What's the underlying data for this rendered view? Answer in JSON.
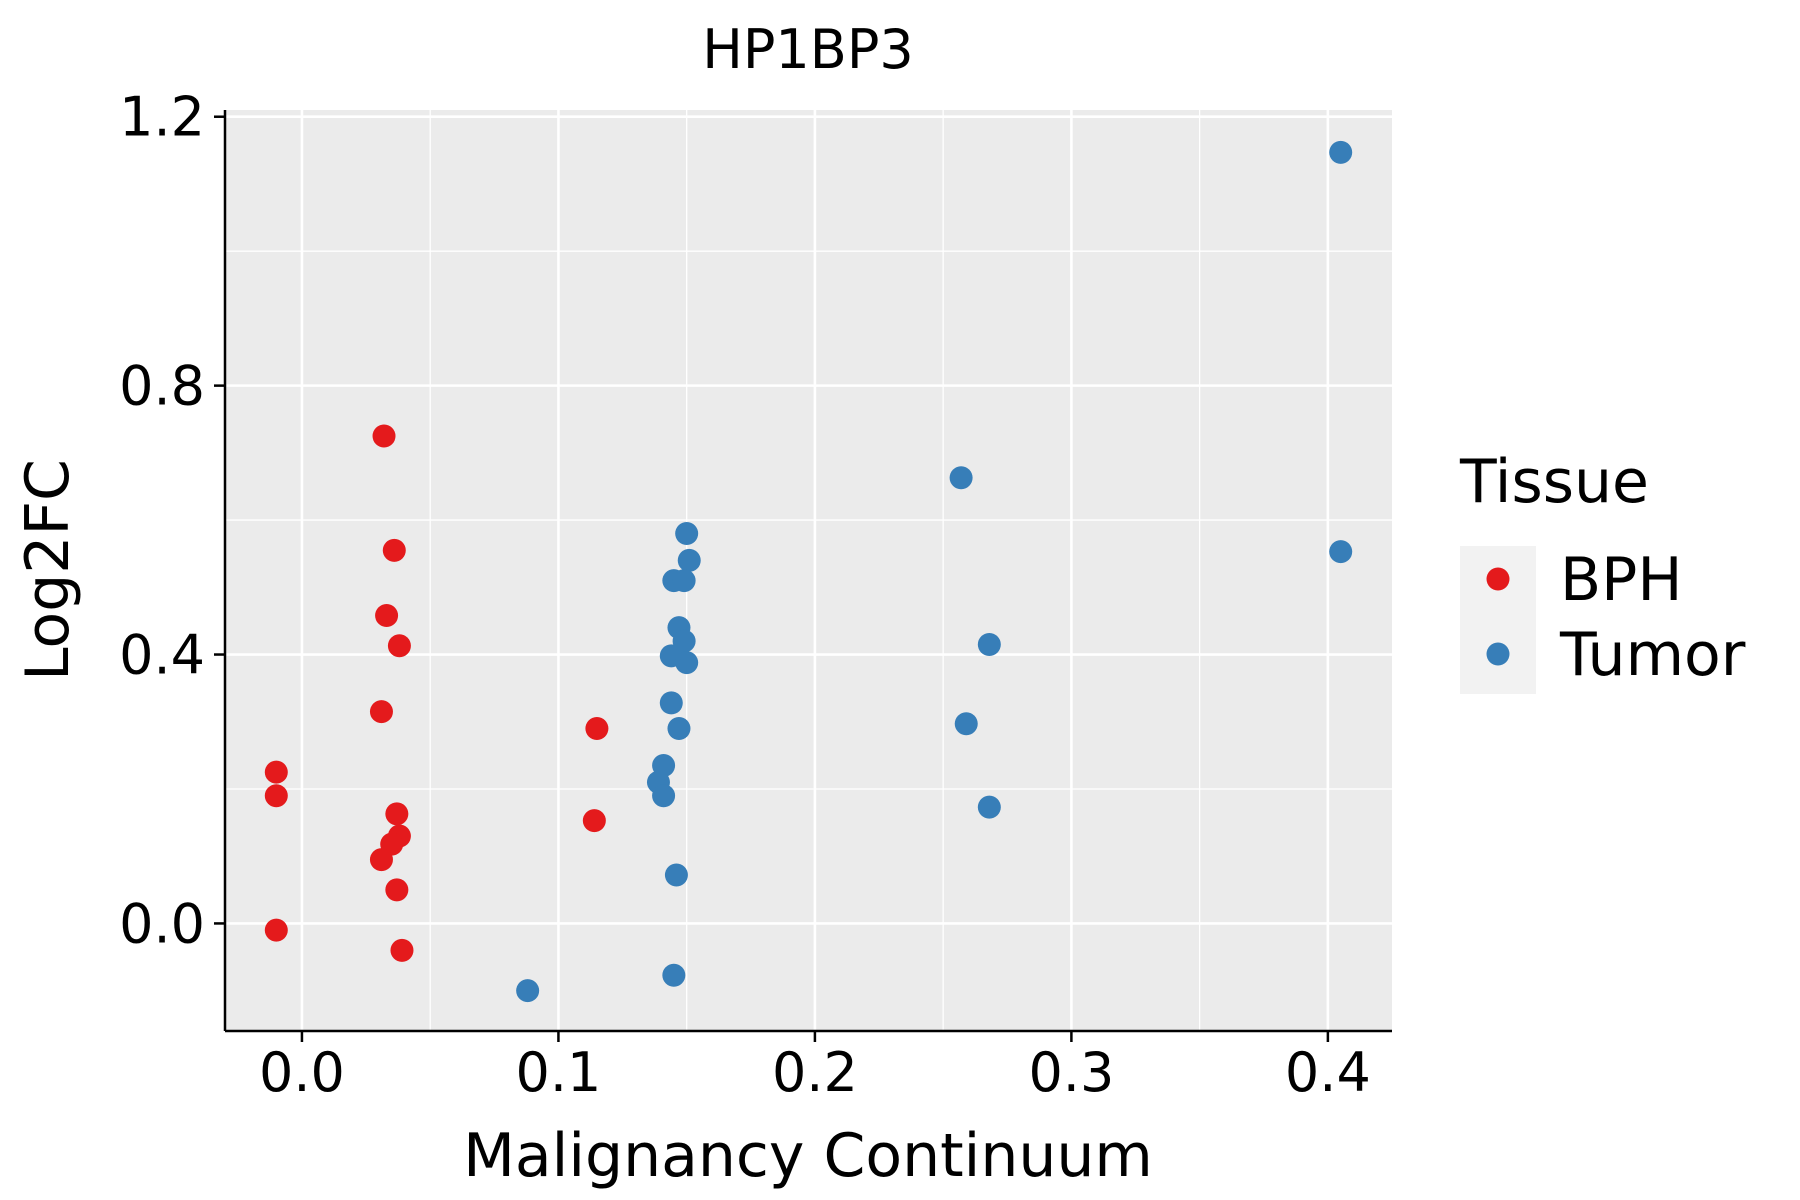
{
  "chart_data": {
    "type": "scatter",
    "title": "HP1BP3",
    "xlabel": "Malignancy Continuum",
    "ylabel": "Log2FC",
    "xlim": [
      -0.03,
      0.425
    ],
    "ylim": [
      -0.16,
      1.21
    ],
    "x_ticks": [
      0.0,
      0.1,
      0.2,
      0.3,
      0.4
    ],
    "x_tick_labels": [
      "0.0",
      "0.1",
      "0.2",
      "0.3",
      "0.4"
    ],
    "y_ticks": [
      0.0,
      0.4,
      0.8,
      1.2
    ],
    "y_tick_labels": [
      "0.0",
      "0.4",
      "0.8",
      "1.2"
    ],
    "grid": true,
    "legend": {
      "title": "Tissue",
      "placement": "right"
    },
    "series": [
      {
        "name": "BPH",
        "color": "#E41A1C",
        "points": [
          [
            -0.01,
            0.225
          ],
          [
            -0.01,
            0.19
          ],
          [
            -0.01,
            -0.01
          ],
          [
            0.032,
            0.725
          ],
          [
            0.036,
            0.555
          ],
          [
            0.033,
            0.458
          ],
          [
            0.038,
            0.413
          ],
          [
            0.031,
            0.315
          ],
          [
            0.037,
            0.163
          ],
          [
            0.038,
            0.13
          ],
          [
            0.035,
            0.118
          ],
          [
            0.031,
            0.095
          ],
          [
            0.037,
            0.05
          ],
          [
            0.039,
            -0.04
          ],
          [
            0.115,
            0.29
          ],
          [
            0.114,
            0.153
          ]
        ]
      },
      {
        "name": "Tumor",
        "color": "#377EB8",
        "points": [
          [
            0.088,
            -0.1
          ],
          [
            0.15,
            0.58
          ],
          [
            0.151,
            0.54
          ],
          [
            0.145,
            0.51
          ],
          [
            0.149,
            0.51
          ],
          [
            0.147,
            0.44
          ],
          [
            0.149,
            0.42
          ],
          [
            0.144,
            0.398
          ],
          [
            0.15,
            0.388
          ],
          [
            0.144,
            0.328
          ],
          [
            0.147,
            0.29
          ],
          [
            0.141,
            0.235
          ],
          [
            0.139,
            0.21
          ],
          [
            0.141,
            0.19
          ],
          [
            0.146,
            0.072
          ],
          [
            0.145,
            -0.077
          ],
          [
            0.257,
            0.663
          ],
          [
            0.268,
            0.415
          ],
          [
            0.259,
            0.297
          ],
          [
            0.268,
            0.173
          ],
          [
            0.405,
            1.147
          ],
          [
            0.405,
            0.553
          ]
        ]
      }
    ]
  }
}
